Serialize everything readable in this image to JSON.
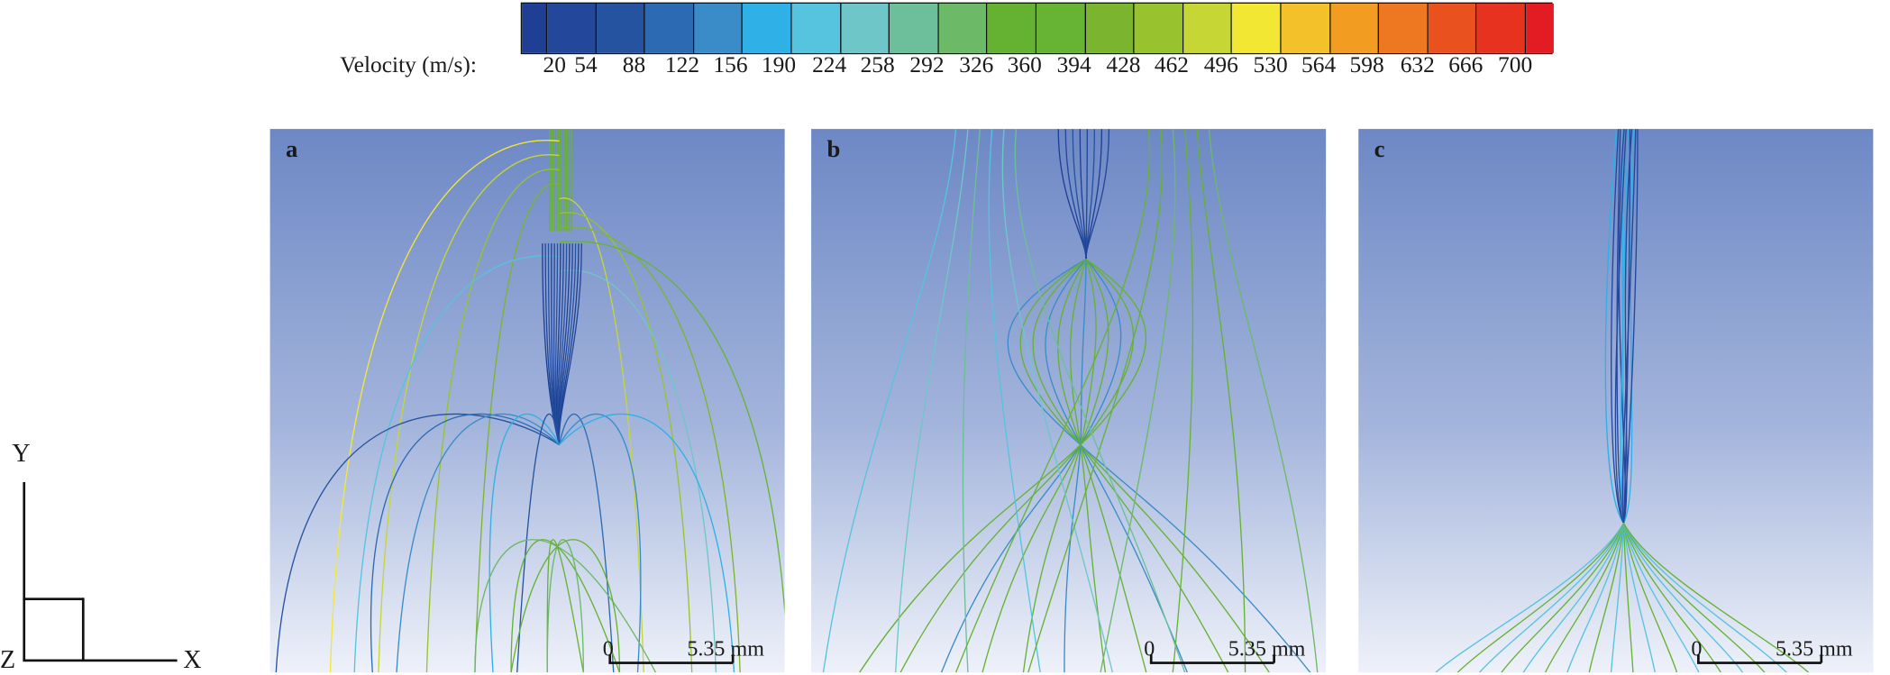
{
  "colorbar": {
    "label": "Velocity (m/s):",
    "ticks": [
      "20",
      "54",
      "88",
      "122",
      "156",
      "190",
      "224",
      "258",
      "292",
      "326",
      "360",
      "394",
      "428",
      "462",
      "496",
      "530",
      "564",
      "598",
      "632",
      "666",
      "700"
    ],
    "colors": [
      "#1f3f95",
      "#22479b",
      "#25539f",
      "#2c6bb3",
      "#3a8cc9",
      "#2fb0e6",
      "#56c3df",
      "#6fc6c9",
      "#6cbf9a",
      "#6cb968",
      "#65b233",
      "#67b334",
      "#7bb52f",
      "#98c32e",
      "#c5d635",
      "#f2e833",
      "#f3c22a",
      "#f29d22",
      "#ee7721",
      "#e9521f",
      "#e6321f",
      "#e31b22"
    ]
  },
  "panels": [
    {
      "label": "a",
      "scale_zero": "0",
      "scale_text": "5.35 mm"
    },
    {
      "label": "b",
      "scale_zero": "0",
      "scale_text": "5.35 mm"
    },
    {
      "label": "c",
      "scale_zero": "0",
      "scale_text": "5.35 mm"
    }
  ],
  "axes_triad": {
    "y": "Y",
    "x": "X",
    "z": "Z"
  }
}
